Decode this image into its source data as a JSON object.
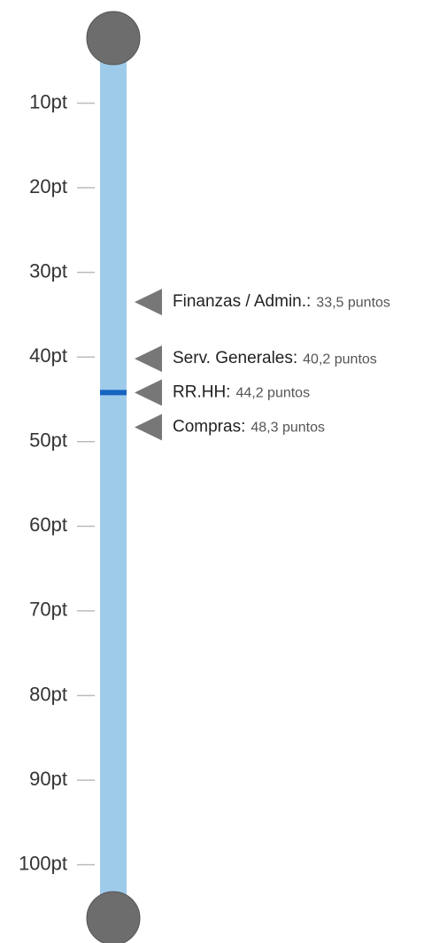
{
  "chart_data": {
    "type": "scale",
    "categories": [
      "Finanzas / Admin.:",
      "Serv. Generales:",
      "RR.HH:",
      "Compras:"
    ],
    "values": [
      33.5,
      40.2,
      44.2,
      48.3
    ],
    "value_labels": [
      "33,5 puntos",
      "40,2 puntos",
      "44,2 puntos",
      "48,3 puntos"
    ],
    "highlight": 44.2,
    "color": "#9fcbeb",
    "highlight_color": "#1565c0",
    "marker_color": "#777777",
    "ylim": [
      2,
      106
    ],
    "yticks": [
      {
        "value": 10,
        "label": "10pt"
      },
      {
        "value": 20,
        "label": "20pt"
      },
      {
        "value": 30,
        "label": "30pt"
      },
      {
        "value": 40,
        "label": "40pt"
      },
      {
        "value": 50,
        "label": "50pt"
      },
      {
        "value": 60,
        "label": "60pt"
      },
      {
        "value": 70,
        "label": "70pt"
      },
      {
        "value": 80,
        "label": "80pt"
      },
      {
        "value": 90,
        "label": "90pt"
      },
      {
        "value": 100,
        "label": "100pt"
      }
    ]
  }
}
